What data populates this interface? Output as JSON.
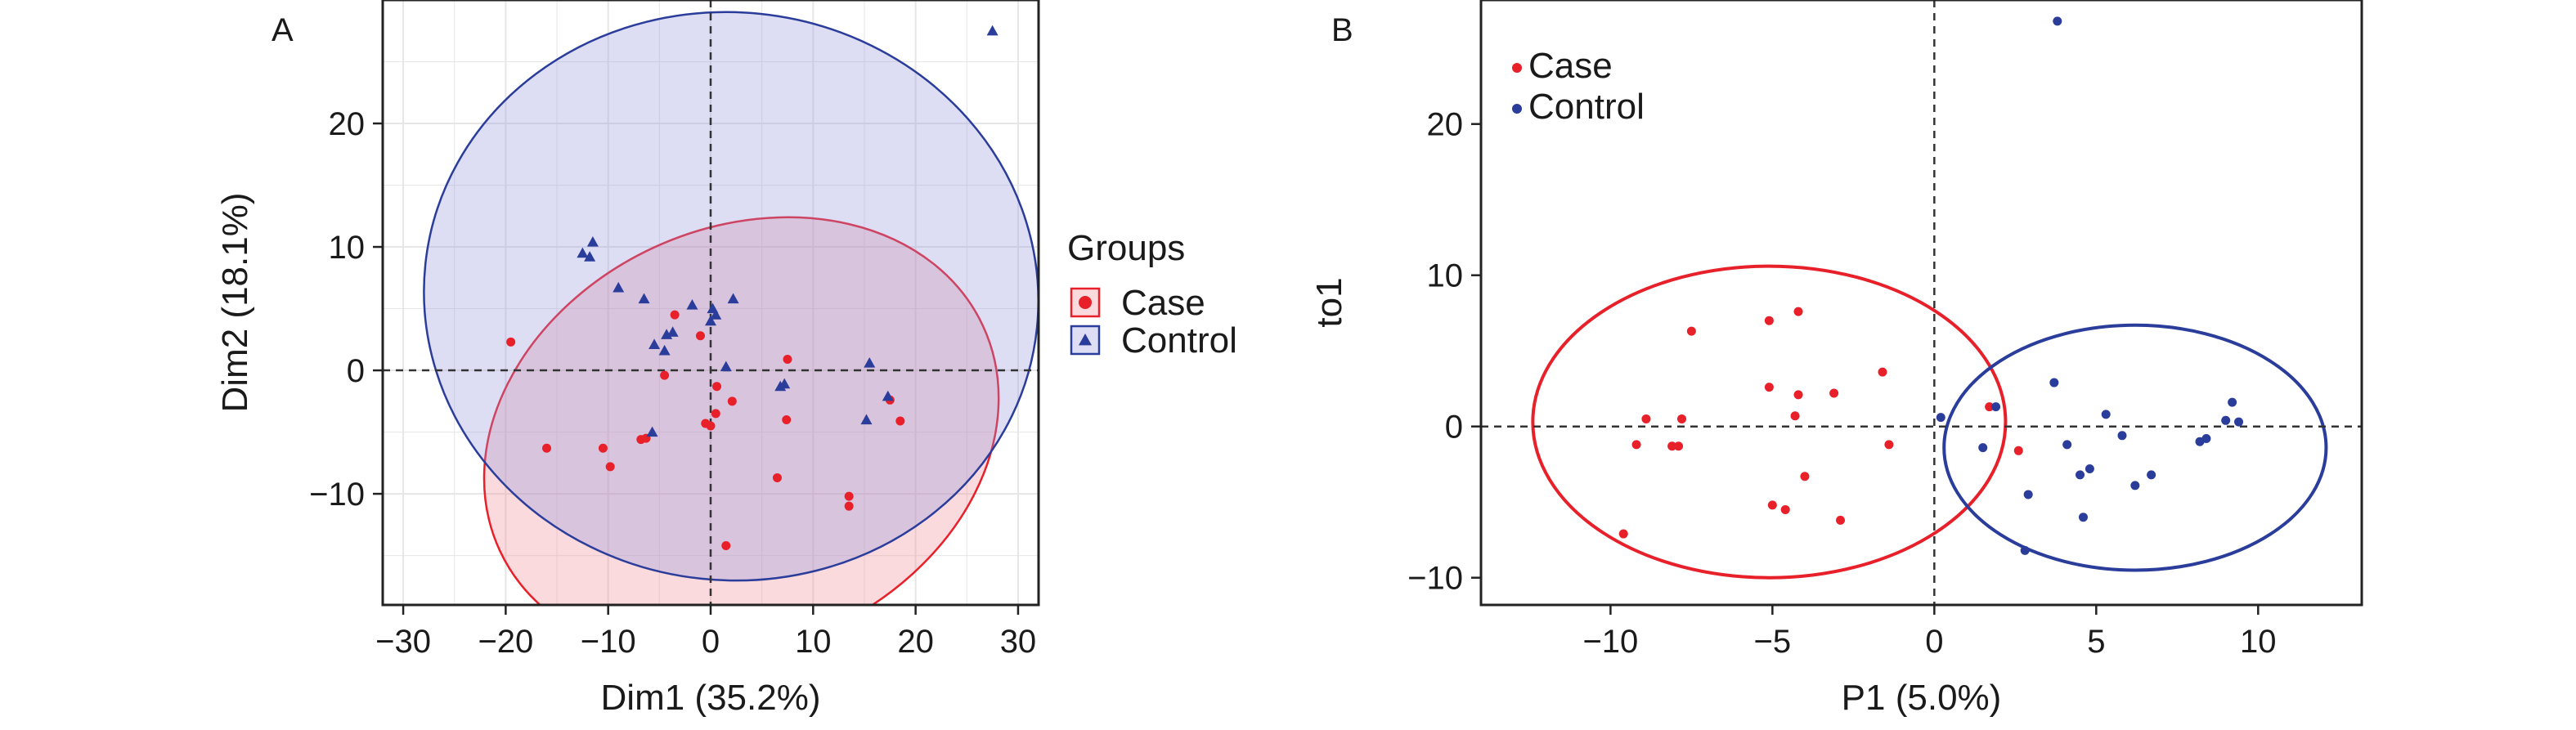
{
  "chart_data": [
    {
      "type": "scatter",
      "panel_label": "A",
      "xlabel": "Dim1 (35.2%)",
      "ylabel": "Dim2 (18.1%)",
      "xlim": [
        -32,
        32
      ],
      "ylim": [
        -19,
        30
      ],
      "xticks": [
        -30,
        -20,
        -10,
        0,
        10,
        20,
        30
      ],
      "yticks": [
        -10,
        0,
        10,
        20
      ],
      "xtick_labels": [
        "−30",
        "−20",
        "−10",
        "0",
        "10",
        "20",
        "30"
      ],
      "ytick_labels": [
        "−10",
        "0",
        "10",
        "20"
      ],
      "grid": true,
      "reference_lines": {
        "x": 0,
        "y": 0
      },
      "legend": {
        "title": "Groups",
        "placement": "outside-right",
        "entries": [
          {
            "label": "Case",
            "color": "#e8202a",
            "marker": "circle"
          },
          {
            "label": "Control",
            "color": "#2b3d9b",
            "marker": "triangle"
          }
        ]
      },
      "series": [
        {
          "name": "Case",
          "color": "#e8202a",
          "fill": "rgba(240,140,150,0.32)",
          "marker": "circle",
          "points": [
            [
              -19.5,
              2.3
            ],
            [
              -16,
              -6.3
            ],
            [
              -10.5,
              -6.3
            ],
            [
              -9.8,
              -7.8
            ],
            [
              -6.8,
              -5.6
            ],
            [
              -6.3,
              -5.5
            ],
            [
              -4.5,
              -0.4
            ],
            [
              -3.5,
              4.5
            ],
            [
              -1,
              2.8
            ],
            [
              -0.5,
              -4.3
            ],
            [
              0,
              -4.5
            ],
            [
              0.5,
              -3.5
            ],
            [
              0.6,
              -1.3
            ],
            [
              1.5,
              -14.2
            ],
            [
              2.1,
              -2.5
            ],
            [
              6.5,
              -8.7
            ],
            [
              7.4,
              -4
            ],
            [
              7.5,
              0.9
            ],
            [
              13.5,
              -10.2
            ],
            [
              13.5,
              -11
            ],
            [
              17.5,
              -2.4
            ],
            [
              18.5,
              -4.1
            ]
          ],
          "ellipse": {
            "center": [
              3,
              -5.5
            ],
            "semi_axes": [
              26,
              17
            ],
            "rotation_deg": -25
          }
        },
        {
          "name": "Control",
          "color": "#2b3d9b",
          "fill": "rgba(150,150,220,0.32)",
          "marker": "triangle",
          "points": [
            [
              -12.5,
              9.5
            ],
            [
              -11.5,
              10.4
            ],
            [
              -11.8,
              9.2
            ],
            [
              -9,
              6.7
            ],
            [
              -6.5,
              5.8
            ],
            [
              -5.5,
              2.1
            ],
            [
              -4.5,
              1.6
            ],
            [
              -4.3,
              2.9
            ],
            [
              -5.7,
              -5
            ],
            [
              -3.7,
              3.1
            ],
            [
              -1.8,
              5.3
            ],
            [
              0,
              4
            ],
            [
              0.2,
              5
            ],
            [
              0.5,
              4.5
            ],
            [
              1.5,
              0.3
            ],
            [
              2.2,
              5.8
            ],
            [
              6.8,
              -1.3
            ],
            [
              7.2,
              -1.1
            ],
            [
              15.5,
              0.6
            ],
            [
              15.2,
              -4
            ],
            [
              17.3,
              -2.1
            ],
            [
              27.5,
              27.5
            ]
          ],
          "ellipse": {
            "center": [
              2,
              6
            ],
            "semi_axes": [
              30,
              23
            ],
            "rotation_deg": 6
          }
        }
      ]
    },
    {
      "type": "scatter",
      "panel_label": "B",
      "xlabel": "P1 (5.0%)",
      "ylabel": "to1",
      "xlim": [
        -14,
        13.2
      ],
      "ylim": [
        -11.8,
        28.2
      ],
      "xticks": [
        -10,
        -5,
        0,
        5,
        10
      ],
      "yticks": [
        -10,
        0,
        10,
        20
      ],
      "xtick_labels": [
        "−10",
        "−5",
        "0",
        "5",
        "10"
      ],
      "ytick_labels": [
        "−10",
        "0",
        "10",
        "20"
      ],
      "grid": false,
      "reference_lines": {
        "x": 0,
        "y": 0
      },
      "legend": {
        "placement": "top-left",
        "entries": [
          {
            "label": "Case",
            "color": "#e8202a"
          },
          {
            "label": "Control",
            "color": "#2b3d9b"
          }
        ]
      },
      "series": [
        {
          "name": "Case",
          "color": "#e8202a",
          "points": [
            [
              -9.6,
              -7.1
            ],
            [
              -9.2,
              -1.2
            ],
            [
              -8.9,
              0.5
            ],
            [
              -8.1,
              -1.3
            ],
            [
              -7.9,
              -1.3
            ],
            [
              -7.8,
              0.5
            ],
            [
              -7.5,
              6.3
            ],
            [
              -5.1,
              2.6
            ],
            [
              -5.1,
              7
            ],
            [
              -5,
              -5.2
            ],
            [
              -4.6,
              -5.5
            ],
            [
              -4.3,
              0.7
            ],
            [
              -4.2,
              7.6
            ],
            [
              -4.2,
              2.1
            ],
            [
              -4,
              -3.3
            ],
            [
              -3.1,
              2.2
            ],
            [
              -2.9,
              -6.2
            ],
            [
              -1.6,
              3.6
            ],
            [
              -1.4,
              -1.2
            ],
            [
              1.7,
              1.3
            ],
            [
              2.6,
              -1.6
            ]
          ],
          "ellipse": {
            "center": [
              -5.1,
              0.3
            ],
            "semi_axes": [
              7.3,
              10.3
            ],
            "rotation_deg": 0
          }
        },
        {
          "name": "Control",
          "color": "#2b3d9b",
          "points": [
            [
              0.2,
              0.6
            ],
            [
              1.5,
              -1.4
            ],
            [
              1.9,
              1.3
            ],
            [
              2.9,
              -4.5
            ],
            [
              2.8,
              -8.2
            ],
            [
              3.7,
              2.9
            ],
            [
              3.8,
              26.8
            ],
            [
              4.1,
              -1.2
            ],
            [
              4.5,
              -3.2
            ],
            [
              4.6,
              -6
            ],
            [
              4.8,
              -2.8
            ],
            [
              5.3,
              0.8
            ],
            [
              5.8,
              -0.6
            ],
            [
              6.2,
              -3.9
            ],
            [
              6.7,
              -3.2
            ],
            [
              8.2,
              -1
            ],
            [
              8.4,
              -0.8
            ],
            [
              9,
              0.4
            ],
            [
              9.2,
              1.6
            ],
            [
              9.4,
              0.3
            ]
          ],
          "ellipse": {
            "center": [
              6.2,
              -1.4
            ],
            "semi_axes": [
              5.9,
              8.1
            ],
            "rotation_deg": 0
          }
        }
      ]
    }
  ]
}
